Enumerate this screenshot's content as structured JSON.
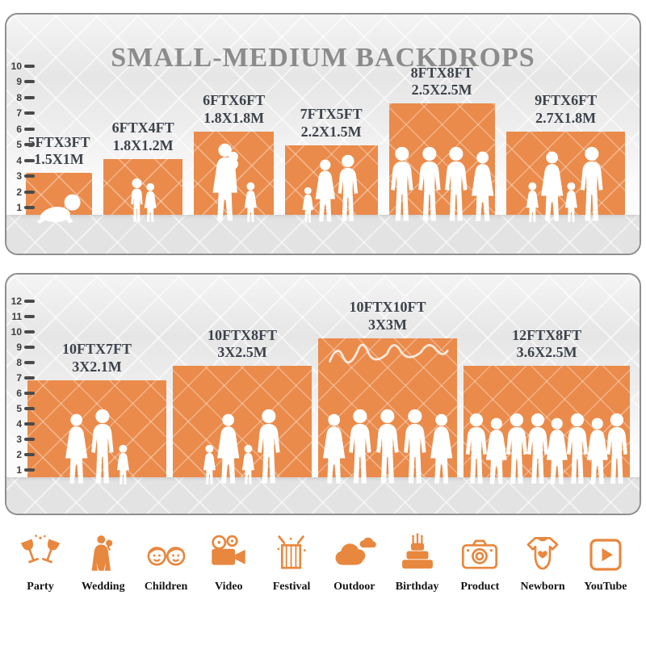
{
  "title": "SMALL-MEDIUM BACKDROPS",
  "colors": {
    "backdrop_orange": "#EA8B4B",
    "icon_orange": "#E8873E",
    "label_dark": "#3D424B",
    "title_gray": "#8B8B8B",
    "floor_gray": "#E3E3E3",
    "ruler_dark": "#4A4A4A"
  },
  "panels": [
    {
      "name": "top-panel",
      "ruler_values": [
        10,
        9,
        8,
        7,
        6,
        5,
        4,
        3,
        2,
        1
      ],
      "backdrops": [
        {
          "ft_label": "5FTX3FT",
          "m_label": "1.5X1M",
          "ft_w": 5,
          "ft_h": 3,
          "people": [
            "baby"
          ]
        },
        {
          "ft_label": "6FTX4FT",
          "m_label": "1.8X1.2M",
          "ft_w": 6,
          "ft_h": 4,
          "people": [
            "boy",
            "girl"
          ]
        },
        {
          "ft_label": "6FTX6FT",
          "m_label": "1.8X1.8M",
          "ft_w": 6,
          "ft_h": 6,
          "people": [
            "woman-baby",
            "girl"
          ]
        },
        {
          "ft_label": "7FTX5FT",
          "m_label": "2.2X1.5M",
          "ft_w": 7,
          "ft_h": 5,
          "people": [
            "girl",
            "woman",
            "man"
          ]
        },
        {
          "ft_label": "8FTX8FT",
          "m_label": "2.5X2.5M",
          "ft_w": 8,
          "ft_h": 8,
          "people": [
            "man",
            "man",
            "man",
            "woman"
          ]
        },
        {
          "ft_label": "9FTX6FT",
          "m_label": "2.7X1.8M",
          "ft_w": 9,
          "ft_h": 6,
          "people": [
            "girl",
            "woman",
            "girl",
            "man"
          ]
        }
      ]
    },
    {
      "name": "bottom-panel",
      "ruler_values": [
        12,
        11,
        10,
        9,
        8,
        7,
        6,
        5,
        4,
        3,
        2,
        1
      ],
      "backdrops": [
        {
          "ft_label": "10FTX7FT",
          "m_label": "3X2.1M",
          "ft_w": 10,
          "ft_h": 7,
          "people": [
            "woman",
            "man",
            "girl"
          ]
        },
        {
          "ft_label": "10FTX8FT",
          "m_label": "3X2.5M",
          "ft_w": 10,
          "ft_h": 8,
          "people": [
            "girl",
            "woman",
            "girl",
            "man"
          ]
        },
        {
          "ft_label": "10FTX10FT",
          "m_label": "3X3M",
          "ft_w": 10,
          "ft_h": 10,
          "people": [
            "woman",
            "man",
            "man",
            "man",
            "woman"
          ],
          "watermark": true
        },
        {
          "ft_label": "12FTX8FT",
          "m_label": "3.6X2.5M",
          "ft_w": 12,
          "ft_h": 8,
          "people": [
            "man",
            "woman",
            "man",
            "man",
            "woman",
            "man",
            "woman",
            "man"
          ]
        }
      ]
    }
  ],
  "categories": [
    {
      "label": "Party",
      "icon": "party-icon"
    },
    {
      "label": "Wedding",
      "icon": "wedding-icon"
    },
    {
      "label": "Children",
      "icon": "children-icon"
    },
    {
      "label": "Video",
      "icon": "video-icon"
    },
    {
      "label": "Festival",
      "icon": "festival-icon"
    },
    {
      "label": "Outdoor",
      "icon": "outdoor-icon"
    },
    {
      "label": "Birthday",
      "icon": "birthday-icon"
    },
    {
      "label": "Product",
      "icon": "product-icon"
    },
    {
      "label": "Newborn",
      "icon": "newborn-icon"
    },
    {
      "label": "YouTube",
      "icon": "youtube-icon"
    }
  ]
}
